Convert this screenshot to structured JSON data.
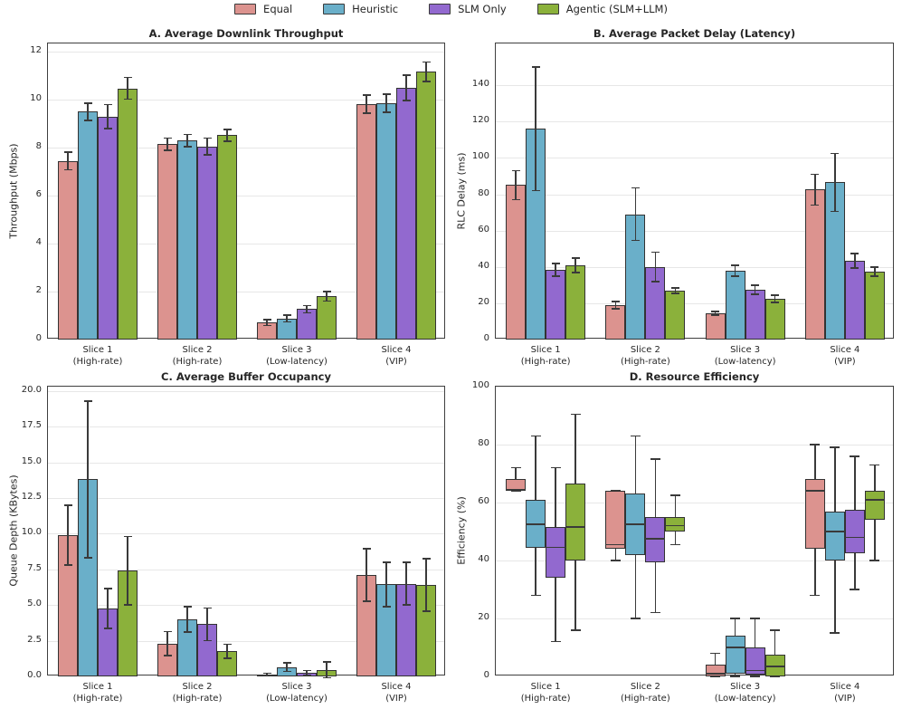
{
  "legend": {
    "items": [
      {
        "label": "Equal",
        "color": "#DC938F"
      },
      {
        "label": "Heuristic",
        "color": "#6AAFC9"
      },
      {
        "label": "SLM Only",
        "color": "#9269CF"
      },
      {
        "label": "Agentic (SLM+LLM)",
        "color": "#8BB13B"
      }
    ]
  },
  "edge_color": "#333333",
  "categories": [
    [
      "Slice 1",
      "(High-rate)"
    ],
    [
      "Slice 2",
      "(High-rate)"
    ],
    [
      "Slice 3",
      "(Low-latency)"
    ],
    [
      "Slice 4",
      "(VIP)"
    ]
  ],
  "chart_data": [
    {
      "type": "bar",
      "title": "A. Average Downlink Throughput",
      "ylabel": "Throughput (Mbps)",
      "ymax": 12.35,
      "yticks": [
        0,
        2,
        4,
        6,
        8,
        10,
        12
      ],
      "ytick_labels": [
        "0",
        "2",
        "4",
        "6",
        "8",
        "10",
        "12"
      ],
      "grid": true,
      "series": [
        {
          "name": "Equal",
          "values": [
            7.45,
            8.15,
            0.7,
            9.82
          ],
          "errors": [
            0.37,
            0.25,
            0.12,
            0.38
          ]
        },
        {
          "name": "Heuristic",
          "values": [
            9.5,
            8.3,
            0.88,
            9.85
          ],
          "errors": [
            0.35,
            0.25,
            0.15,
            0.38
          ]
        },
        {
          "name": "SLM Only",
          "values": [
            9.3,
            8.05,
            1.27,
            10.5
          ],
          "errors": [
            0.5,
            0.35,
            0.15,
            0.52
          ]
        },
        {
          "name": "Agentic (SLM+LLM)",
          "values": [
            10.48,
            8.52,
            1.8,
            11.17
          ],
          "errors": [
            0.45,
            0.25,
            0.2,
            0.4
          ]
        }
      ]
    },
    {
      "type": "bar",
      "title": "B. Average Packet Delay (Latency)",
      "ylabel": "RLC Delay (ms)",
      "ymax": 163,
      "yticks": [
        0,
        20,
        40,
        60,
        80,
        100,
        120,
        140
      ],
      "ytick_labels": [
        "0",
        "20",
        "40",
        "60",
        "80",
        "100",
        "120",
        "140"
      ],
      "grid": true,
      "series": [
        {
          "name": "Equal",
          "values": [
            85.0,
            19.0,
            14.5,
            82.5
          ],
          "errors": [
            8.0,
            2.0,
            1.0,
            8.5
          ]
        },
        {
          "name": "Heuristic",
          "values": [
            116.0,
            69.0,
            38.0,
            86.5
          ],
          "errors": [
            34.0,
            14.5,
            3.0,
            16.0
          ]
        },
        {
          "name": "SLM Only",
          "values": [
            38.5,
            40.0,
            27.5,
            43.5
          ],
          "errors": [
            3.5,
            8.0,
            2.5,
            4.0
          ]
        },
        {
          "name": "Agentic (SLM+LLM)",
          "values": [
            41.0,
            27.0,
            22.5,
            37.5
          ],
          "errors": [
            4.0,
            1.5,
            2.0,
            2.5
          ]
        }
      ]
    },
    {
      "type": "bar",
      "title": "C. Average Buffer Occupancy",
      "ylabel": "Queue Depth (KBytes)",
      "ymax": 20.3,
      "yticks": [
        0,
        2.5,
        5,
        7.5,
        10,
        12.5,
        15,
        17.5,
        20
      ],
      "ytick_labels": [
        "0.0",
        "2.5",
        "5.0",
        "7.5",
        "10.0",
        "12.5",
        "15.0",
        "17.5",
        "20.0"
      ],
      "grid": true,
      "series": [
        {
          "name": "Equal",
          "values": [
            9.9,
            2.3,
            0.12,
            7.1
          ],
          "errors": [
            2.1,
            0.85,
            0.1,
            1.85
          ]
        },
        {
          "name": "Heuristic",
          "values": [
            13.8,
            4.0,
            0.65,
            6.45
          ],
          "errors": [
            5.5,
            0.9,
            0.3,
            1.55
          ]
        },
        {
          "name": "SLM Only",
          "values": [
            4.75,
            3.65,
            0.25,
            6.5
          ],
          "errors": [
            1.4,
            1.15,
            0.15,
            1.5
          ]
        },
        {
          "name": "Agentic (SLM+LLM)",
          "values": [
            7.4,
            1.75,
            0.45,
            6.4
          ],
          "errors": [
            2.4,
            0.5,
            0.55,
            1.85
          ]
        }
      ]
    },
    {
      "type": "box",
      "title": "D. Resource Efficiency",
      "ylabel": "Efficiency (%)",
      "ymax": 100,
      "yticks": [
        0,
        20,
        40,
        60,
        80,
        100
      ],
      "ytick_labels": [
        "0",
        "20",
        "40",
        "60",
        "80",
        "100"
      ],
      "grid": true,
      "box_stats_order": [
        "whisker_low",
        "q1",
        "median",
        "q3",
        "whisker_high"
      ],
      "series": [
        {
          "name": "Equal",
          "boxes": [
            [
              64,
              64,
              64.5,
              68,
              72
            ],
            [
              40,
              44,
              45.5,
              64,
              64
            ],
            [
              0,
              0,
              1,
              4,
              8
            ],
            [
              28,
              44,
              64,
              68,
              80
            ]
          ]
        },
        {
          "name": "Heuristic",
          "boxes": [
            [
              28,
              44.5,
              52.5,
              61,
              83
            ],
            [
              20,
              42,
              52.5,
              63,
              83
            ],
            [
              0,
              1,
              10,
              14,
              20
            ],
            [
              15,
              40,
              50,
              57,
              79
            ]
          ]
        },
        {
          "name": "SLM Only",
          "boxes": [
            [
              12,
              34,
              44.5,
              51.5,
              72
            ],
            [
              22,
              39.5,
              47.5,
              55,
              75
            ],
            [
              0,
              0.5,
              2,
              10,
              20
            ],
            [
              30,
              42.5,
              48,
              57.5,
              76
            ]
          ]
        },
        {
          "name": "Agentic (SLM+LLM)",
          "boxes": [
            [
              16,
              40,
              51.5,
              66.5,
              90.5
            ],
            [
              45.5,
              50,
              52,
              55,
              62.5
            ],
            [
              0,
              0,
              3.5,
              7.5,
              16
            ],
            [
              40,
              54,
              61,
              64,
              73
            ]
          ]
        }
      ]
    }
  ]
}
